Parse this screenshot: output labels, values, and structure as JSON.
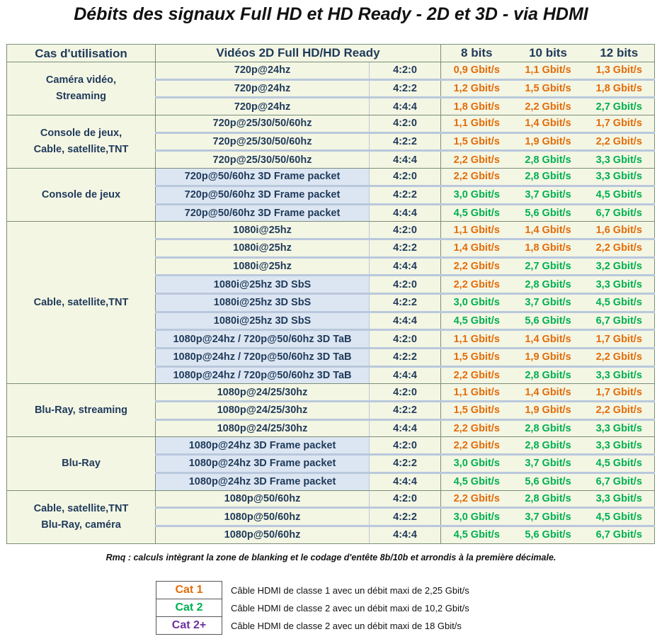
{
  "title": "Débits des signaux Full HD et HD Ready - 2D et 3D - via HDMI",
  "header": {
    "use": "Cas d'utilisation",
    "video": "Vidéos 2D Full HD/HD Ready",
    "b8": "8 bits",
    "b10": "10 bits",
    "b12": "12 bits"
  },
  "groups": [
    {
      "use": [
        "Caméra vidéo,",
        "Streaming"
      ],
      "rows": [
        {
          "v": "720p@24hz",
          "s": "4:2:0",
          "b8": "0,9 Gbit/s",
          "c8": 1,
          "b10": "1,1 Gbit/s",
          "c10": 1,
          "b12": "1,3 Gbit/s",
          "c12": 1,
          "d3": false
        },
        {
          "v": "720p@24hz",
          "s": "4:2:2",
          "b8": "1,2 Gbit/s",
          "c8": 1,
          "b10": "1,5 Gbit/s",
          "c10": 1,
          "b12": "1,8 Gbit/s",
          "c12": 1,
          "d3": false
        },
        {
          "v": "720p@24hz",
          "s": "4:4:4",
          "b8": "1,8 Gbit/s",
          "c8": 1,
          "b10": "2,2 Gbit/s",
          "c10": 1,
          "b12": "2,7 Gbit/s",
          "c12": 2,
          "d3": false
        }
      ]
    },
    {
      "use": [
        "Console de jeux,",
        "Cable, satellite,TNT"
      ],
      "rows": [
        {
          "v": "720p@25/30/50/60hz",
          "s": "4:2:0",
          "b8": "1,1 Gbit/s",
          "c8": 1,
          "b10": "1,4 Gbit/s",
          "c10": 1,
          "b12": "1,7 Gbit/s",
          "c12": 1,
          "d3": false
        },
        {
          "v": "720p@25/30/50/60hz",
          "s": "4:2:2",
          "b8": "1,5 Gbit/s",
          "c8": 1,
          "b10": "1,9 Gbit/s",
          "c10": 1,
          "b12": "2,2 Gbit/s",
          "c12": 1,
          "d3": false
        },
        {
          "v": "720p@25/30/50/60hz",
          "s": "4:4:4",
          "b8": "2,2 Gbit/s",
          "c8": 1,
          "b10": "2,8 Gbit/s",
          "c10": 2,
          "b12": "3,3 Gbit/s",
          "c12": 2,
          "d3": false
        }
      ]
    },
    {
      "use": [
        "Console de jeux"
      ],
      "rows": [
        {
          "v": "720p@50/60hz 3D Frame packet",
          "s": "4:2:0",
          "b8": "2,2 Gbit/s",
          "c8": 1,
          "b10": "2,8 Gbit/s",
          "c10": 2,
          "b12": "3,3 Gbit/s",
          "c12": 2,
          "d3": true
        },
        {
          "v": "720p@50/60hz 3D Frame packet",
          "s": "4:2:2",
          "b8": "3,0 Gbit/s",
          "c8": 2,
          "b10": "3,7 Gbit/s",
          "c10": 2,
          "b12": "4,5 Gbit/s",
          "c12": 2,
          "d3": true
        },
        {
          "v": "720p@50/60hz 3D Frame packet",
          "s": "4:4:4",
          "b8": "4,5 Gbit/s",
          "c8": 2,
          "b10": "5,6 Gbit/s",
          "c10": 2,
          "b12": "6,7 Gbit/s",
          "c12": 2,
          "d3": true
        }
      ]
    },
    {
      "use": [
        "Cable, satellite,TNT"
      ],
      "rows": [
        {
          "v": "1080i@25hz",
          "s": "4:2:0",
          "b8": "1,1 Gbit/s",
          "c8": 1,
          "b10": "1,4 Gbit/s",
          "c10": 1,
          "b12": "1,6 Gbit/s",
          "c12": 1,
          "d3": false
        },
        {
          "v": "1080i@25hz",
          "s": "4:2:2",
          "b8": "1,4 Gbit/s",
          "c8": 1,
          "b10": "1,8 Gbit/s",
          "c10": 1,
          "b12": "2,2 Gbit/s",
          "c12": 1,
          "d3": false
        },
        {
          "v": "1080i@25hz",
          "s": "4:4:4",
          "b8": "2,2 Gbit/s",
          "c8": 1,
          "b10": "2,7 Gbit/s",
          "c10": 2,
          "b12": "3,2 Gbit/s",
          "c12": 2,
          "d3": false
        },
        {
          "v": "1080i@25hz 3D SbS",
          "s": "4:2:0",
          "b8": "2,2 Gbit/s",
          "c8": 1,
          "b10": "2,8 Gbit/s",
          "c10": 2,
          "b12": "3,3 Gbit/s",
          "c12": 2,
          "d3": true
        },
        {
          "v": "1080i@25hz 3D SbS",
          "s": "4:2:2",
          "b8": "3,0 Gbit/s",
          "c8": 2,
          "b10": "3,7 Gbit/s",
          "c10": 2,
          "b12": "4,5 Gbit/s",
          "c12": 2,
          "d3": true
        },
        {
          "v": "1080i@25hz 3D SbS",
          "s": "4:4:4",
          "b8": "4,5 Gbit/s",
          "c8": 2,
          "b10": "5,6 Gbit/s",
          "c10": 2,
          "b12": "6,7 Gbit/s",
          "c12": 2,
          "d3": true
        },
        {
          "v": "1080p@24hz / 720p@50/60hz 3D TaB",
          "s": "4:2:0",
          "b8": "1,1 Gbit/s",
          "c8": 1,
          "b10": "1,4 Gbit/s",
          "c10": 1,
          "b12": "1,7 Gbit/s",
          "c12": 1,
          "d3": true
        },
        {
          "v": "1080p@24hz / 720p@50/60hz 3D TaB",
          "s": "4:2:2",
          "b8": "1,5 Gbit/s",
          "c8": 1,
          "b10": "1,9 Gbit/s",
          "c10": 1,
          "b12": "2,2 Gbit/s",
          "c12": 1,
          "d3": true
        },
        {
          "v": "1080p@24hz / 720p@50/60hz 3D TaB",
          "s": "4:4:4",
          "b8": "2,2 Gbit/s",
          "c8": 1,
          "b10": "2,8 Gbit/s",
          "c10": 2,
          "b12": "3,3 Gbit/s",
          "c12": 2,
          "d3": true
        }
      ]
    },
    {
      "use": [
        "Blu-Ray, streaming"
      ],
      "rows": [
        {
          "v": "1080p@24/25/30hz",
          "s": "4:2:0",
          "b8": "1,1 Gbit/s",
          "c8": 1,
          "b10": "1,4 Gbit/s",
          "c10": 1,
          "b12": "1,7 Gbit/s",
          "c12": 1,
          "d3": false
        },
        {
          "v": "1080p@24/25/30hz",
          "s": "4:2:2",
          "b8": "1,5 Gbit/s",
          "c8": 1,
          "b10": "1,9 Gbit/s",
          "c10": 1,
          "b12": "2,2 Gbit/s",
          "c12": 1,
          "d3": false
        },
        {
          "v": "1080p@24/25/30hz",
          "s": "4:4:4",
          "b8": "2,2 Gbit/s",
          "c8": 1,
          "b10": "2,8 Gbit/s",
          "c10": 2,
          "b12": "3,3 Gbit/s",
          "c12": 2,
          "d3": false
        }
      ]
    },
    {
      "use": [
        "Blu-Ray"
      ],
      "rows": [
        {
          "v": "1080p@24hz 3D Frame packet",
          "s": "4:2:0",
          "b8": "2,2 Gbit/s",
          "c8": 1,
          "b10": "2,8 Gbit/s",
          "c10": 2,
          "b12": "3,3 Gbit/s",
          "c12": 2,
          "d3": true
        },
        {
          "v": "1080p@24hz 3D Frame packet",
          "s": "4:2:2",
          "b8": "3,0 Gbit/s",
          "c8": 2,
          "b10": "3,7 Gbit/s",
          "c10": 2,
          "b12": "4,5 Gbit/s",
          "c12": 2,
          "d3": true
        },
        {
          "v": "1080p@24hz 3D Frame packet",
          "s": "4:4:4",
          "b8": "4,5 Gbit/s",
          "c8": 2,
          "b10": "5,6 Gbit/s",
          "c10": 2,
          "b12": "6,7 Gbit/s",
          "c12": 2,
          "d3": true
        }
      ]
    },
    {
      "use": [
        "Cable, satellite,TNT",
        "Blu-Ray, caméra"
      ],
      "rows": [
        {
          "v": "1080p@50/60hz",
          "s": "4:2:0",
          "b8": "2,2 Gbit/s",
          "c8": 1,
          "b10": "2,8 Gbit/s",
          "c10": 2,
          "b12": "3,3 Gbit/s",
          "c12": 2,
          "d3": false
        },
        {
          "v": "1080p@50/60hz",
          "s": "4:2:2",
          "b8": "3,0 Gbit/s",
          "c8": 2,
          "b10": "3,7 Gbit/s",
          "c10": 2,
          "b12": "4,5 Gbit/s",
          "c12": 2,
          "d3": false
        },
        {
          "v": "1080p@50/60hz",
          "s": "4:4:4",
          "b8": "4,5 Gbit/s",
          "c8": 2,
          "b10": "5,6 Gbit/s",
          "c10": 2,
          "b12": "6,7 Gbit/s",
          "c12": 2,
          "d3": false
        }
      ]
    }
  ],
  "note": "Rmq : calculs intègrant la zone de blanking et le codage d'entête 8b/10b et arrondis à la première décimale.",
  "legend": [
    {
      "cat": "Cat 1",
      "color": 1,
      "desc": "Câble HDMI de classe 1 avec un débit maxi de 2,25 Gbit/s"
    },
    {
      "cat": "Cat 2",
      "color": 2,
      "desc": "Câble HDMI de classe 2 avec un débit maxi de 10,2 Gbit/s"
    },
    {
      "cat": "Cat 2+",
      "color": 3,
      "desc": "Câble HDMI de classe 2 avec un débit maxi de 18 Gbit/s"
    }
  ],
  "colors": {
    "cat1": "#e36c0a",
    "cat2": "#00b050",
    "cat3": "#7030a0",
    "header_text": "#1f3a5a",
    "row_bg": "#f4f6e4",
    "row_3d_bg": "#dce6f2"
  }
}
